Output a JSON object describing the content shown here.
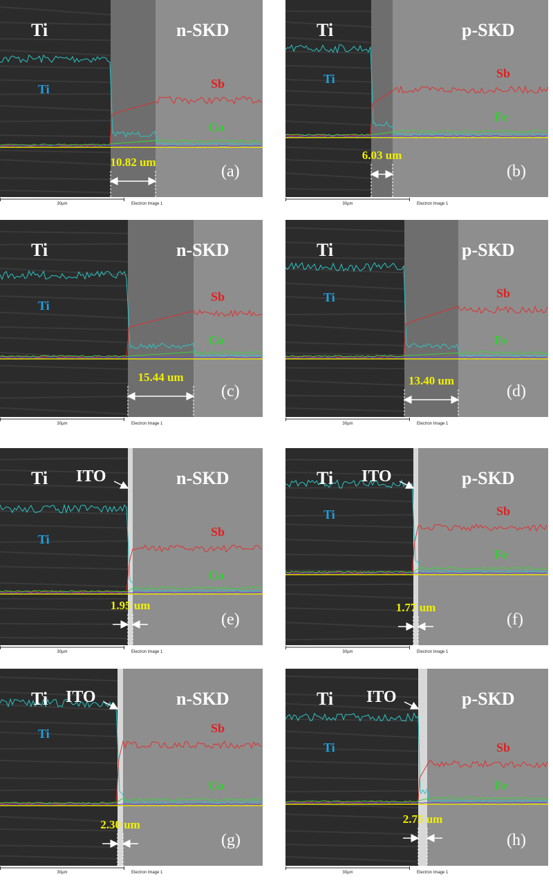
{
  "panels": [
    {
      "letter": "(a)",
      "ti_label": "Ti",
      "skd_label": "n-SKD",
      "ti_trace": "Ti",
      "sb_trace": "Sb",
      "minor_trace": "Co",
      "thickness": "10.82 um",
      "scale": "30µm",
      "caption": "Electron Image 1"
    },
    {
      "letter": "(b)",
      "ti_label": "Ti",
      "skd_label": "p-SKD",
      "ti_trace": "Ti",
      "sb_trace": "Sb",
      "minor_trace": "Fe",
      "thickness": "6.03 um",
      "scale": "30µm",
      "caption": "Electron Image 1"
    },
    {
      "letter": "(c)",
      "ti_label": "Ti",
      "skd_label": "n-SKD",
      "ti_trace": "Ti",
      "sb_trace": "Sb",
      "minor_trace": "Co",
      "thickness": "15.44 um",
      "scale": "30µm",
      "caption": "Electron Image 1"
    },
    {
      "letter": "(d)",
      "ti_label": "Ti",
      "skd_label": "p-SKD",
      "ti_trace": "Ti",
      "sb_trace": "Sb",
      "minor_trace": "Fe",
      "thickness": "13.40 um",
      "scale": "30µm",
      "caption": "Electron Image 1"
    },
    {
      "letter": "(e)",
      "ti_label": "Ti",
      "ito_label": "ITO",
      "skd_label": "n-SKD",
      "ti_trace": "Ti",
      "sb_trace": "Sb",
      "minor_trace": "Co",
      "thickness": "1.95 um",
      "scale": "30µm",
      "caption": "Electron Image 1"
    },
    {
      "letter": "(f)",
      "ti_label": "Ti",
      "ito_label": "ITO",
      "skd_label": "p-SKD",
      "ti_trace": "Ti",
      "sb_trace": "Sb",
      "minor_trace": "Fe",
      "thickness": "1.77 um",
      "scale": "30µm",
      "caption": "Electron Image 1"
    },
    {
      "letter": "(g)",
      "ti_label": "Ti",
      "ito_label": "ITO",
      "skd_label": "n-SKD",
      "ti_trace": "Ti",
      "sb_trace": "Sb",
      "minor_trace": "Co",
      "thickness": "2.30 um",
      "scale": "30µm",
      "caption": "Electron Image 1"
    },
    {
      "letter": "(h)",
      "ti_label": "Ti",
      "ito_label": "ITO",
      "skd_label": "p-SKD",
      "ti_trace": "Ti",
      "sb_trace": "Sb",
      "minor_trace": "Fe",
      "thickness": "2.75 um",
      "scale": "30µm",
      "caption": "Electron Image 1"
    }
  ]
}
